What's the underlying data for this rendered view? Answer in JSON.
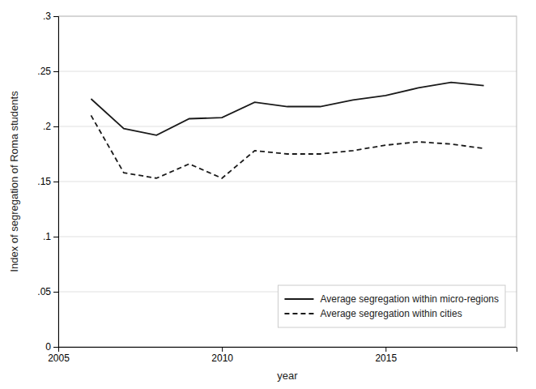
{
  "chart_data": {
    "type": "line",
    "x": [
      2006,
      2007,
      2008,
      2009,
      2010,
      2011,
      2012,
      2013,
      2014,
      2015,
      2016,
      2017,
      2018
    ],
    "series": [
      {
        "name": "Average segregation within micro-regions",
        "color": "#1a1a1a",
        "line_style": "solid",
        "values": [
          0.225,
          0.198,
          0.192,
          0.207,
          0.208,
          0.222,
          0.218,
          0.218,
          0.224,
          0.228,
          0.235,
          0.24,
          0.237
        ]
      },
      {
        "name": "Average segregation within cities",
        "color": "#1a1a1a",
        "line_style": "dashed",
        "values": [
          0.21,
          0.158,
          0.153,
          0.166,
          0.153,
          0.178,
          0.175,
          0.175,
          0.178,
          0.183,
          0.186,
          0.184,
          0.18
        ]
      }
    ],
    "x_label": "year",
    "y_label": "Index of segregation of Roma students",
    "xlim": [
      2005,
      2019
    ],
    "xticks": [
      2005,
      2010,
      2015
    ],
    "ylim": [
      0,
      0.3
    ],
    "yticks": [
      0,
      {
        "value": 0.05,
        "label": ".05"
      },
      {
        "value": 0.1,
        "label": ".1"
      },
      {
        "value": 0.15,
        "label": ".15"
      },
      {
        "value": 0.2,
        "label": ".2"
      },
      {
        "value": 0.25,
        "label": ".25"
      },
      {
        "value": 0.3,
        "label": ".3"
      }
    ],
    "grid": true,
    "legend": "lower right"
  }
}
